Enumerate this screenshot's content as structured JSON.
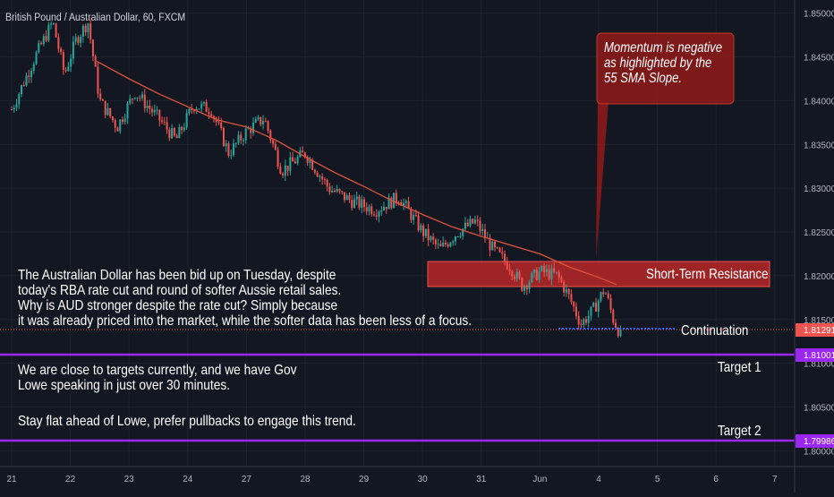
{
  "chart_data": {
    "type": "candlestick",
    "title": "British Pound / Australian Dollar, 60, FXCM",
    "x_ticks": [
      "21",
      "22",
      "23",
      "24",
      "27",
      "28",
      "29",
      "30",
      "31",
      "Jun",
      "4",
      "5",
      "6",
      "7"
    ],
    "y_ticks": [
      "1.85000",
      "1.84500",
      "1.84000",
      "1.83500",
      "1.83000",
      "1.82500",
      "1.82000",
      "1.81500",
      "1.81000",
      "1.80500",
      "1.80000"
    ],
    "ylim": [
      1.7983,
      1.8515
    ],
    "last_price": "1.81291",
    "target1_price": "1.81001",
    "target2_price": "1.79986",
    "sma_label": "55 SMA",
    "sma_points": [
      {
        "day": 1.45,
        "value": 1.8445
      },
      {
        "day": 2.0,
        "value": 1.8425
      },
      {
        "day": 2.5,
        "value": 1.8408
      },
      {
        "day": 3.0,
        "value": 1.8393
      },
      {
        "day": 3.5,
        "value": 1.8378
      },
      {
        "day": 4.0,
        "value": 1.837
      },
      {
        "day": 4.5,
        "value": 1.8355
      },
      {
        "day": 5.0,
        "value": 1.8336
      },
      {
        "day": 5.5,
        "value": 1.8318
      },
      {
        "day": 6.0,
        "value": 1.8302
      },
      {
        "day": 6.5,
        "value": 1.8285
      },
      {
        "day": 7.0,
        "value": 1.827
      },
      {
        "day": 7.5,
        "value": 1.8256
      },
      {
        "day": 8.0,
        "value": 1.8245
      },
      {
        "day": 8.5,
        "value": 1.8235
      },
      {
        "day": 9.0,
        "value": 1.8225
      },
      {
        "day": 9.5,
        "value": 1.821
      },
      {
        "day": 10.0,
        "value": 1.8198
      },
      {
        "day": 10.3,
        "value": 1.819
      }
    ],
    "price_path": [
      {
        "day": 0.0,
        "value": 1.839
      },
      {
        "day": 0.4,
        "value": 1.845
      },
      {
        "day": 0.7,
        "value": 1.849
      },
      {
        "day": 0.9,
        "value": 1.843
      },
      {
        "day": 1.1,
        "value": 1.847
      },
      {
        "day": 1.3,
        "value": 1.849
      },
      {
        "day": 1.5,
        "value": 1.84
      },
      {
        "day": 1.8,
        "value": 1.837
      },
      {
        "day": 2.1,
        "value": 1.841
      },
      {
        "day": 2.5,
        "value": 1.838
      },
      {
        "day": 2.8,
        "value": 1.8355
      },
      {
        "day": 3.1,
        "value": 1.8395
      },
      {
        "day": 3.4,
        "value": 1.839
      },
      {
        "day": 3.7,
        "value": 1.834
      },
      {
        "day": 4.0,
        "value": 1.8365
      },
      {
        "day": 4.3,
        "value": 1.838
      },
      {
        "day": 4.6,
        "value": 1.832
      },
      {
        "day": 5.0,
        "value": 1.834
      },
      {
        "day": 5.4,
        "value": 1.83
      },
      {
        "day": 5.8,
        "value": 1.8285
      },
      {
        "day": 6.2,
        "value": 1.8275
      },
      {
        "day": 6.6,
        "value": 1.829
      },
      {
        "day": 7.0,
        "value": 1.825
      },
      {
        "day": 7.3,
        "value": 1.823
      },
      {
        "day": 7.6,
        "value": 1.825
      },
      {
        "day": 7.9,
        "value": 1.8262
      },
      {
        "day": 8.2,
        "value": 1.823
      },
      {
        "day": 8.5,
        "value": 1.821
      },
      {
        "day": 8.7,
        "value": 1.8188
      },
      {
        "day": 9.0,
        "value": 1.8205
      },
      {
        "day": 9.3,
        "value": 1.82
      },
      {
        "day": 9.5,
        "value": 1.8175
      },
      {
        "day": 9.7,
        "value": 1.8145
      },
      {
        "day": 9.9,
        "value": 1.816
      },
      {
        "day": 10.1,
        "value": 1.8185
      },
      {
        "day": 10.25,
        "value": 1.815
      },
      {
        "day": 10.4,
        "value": 1.8129
      }
    ],
    "resistance_zone": [
      1.818,
      1.821
    ],
    "continuation_level": 1.8131,
    "annotations": {
      "resistance": "Short-Term Resistance",
      "continuation": "Continuation",
      "target1": "Target 1",
      "target2": "Target 2",
      "callout": [
        "Momentum is negative",
        "as highlighted by the",
        "55 SMA Slope."
      ]
    }
  },
  "notes": {
    "paragraph1": [
      "The Australian Dollar has been bid up on Tuesday, despite",
      "today's RBA rate cut and round of softer Aussie retail sales.",
      "Why is AUD stronger despite the rate cut? Simply because",
      "it was already priced into the market, while the softer data has been less of a focus."
    ],
    "paragraph2": [
      "We are close to targets currently, and we have Gov",
      "Lowe speaking in just over 30 minutes."
    ],
    "paragraph3": "Stay flat ahead of Lowe, prefer pullbacks to engage this trend."
  },
  "colors": {
    "background": "#131722",
    "up": "#26a69a",
    "down": "#ef5350",
    "sma": "#e0533c",
    "target_line": "#9c27f0",
    "resistance_fill": "#c62828",
    "continuation_line": "#2962ff"
  }
}
